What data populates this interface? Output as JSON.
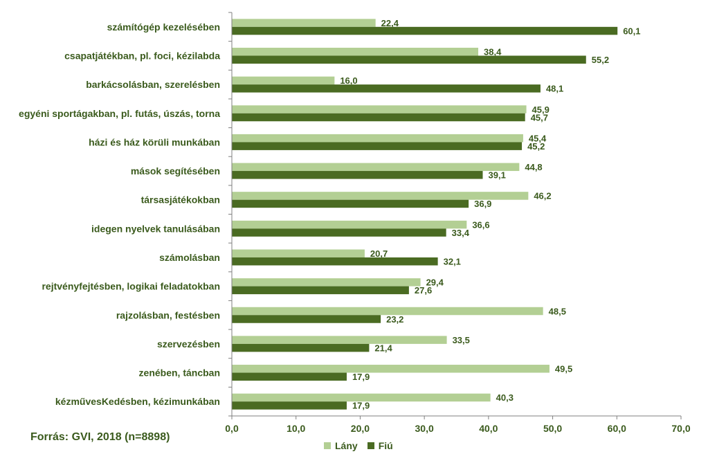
{
  "chart_data": {
    "type": "bar",
    "orientation": "horizontal",
    "categories": [
      "számítógép kezelésében",
      "csapatjátékban, pl. foci, kézilabda",
      "barkácsolásban, szerelésben",
      "egyéni sportágakban, pl. futás, úszás, torna",
      "házi és ház körüli munkában",
      "mások segítésében",
      "társasjátékokban",
      "idegen nyelvek tanulásában",
      "számolásban",
      "rejtvényfejtésben, logikai feladatokban",
      "rajzolásban, festésben",
      "szervezésben",
      "zenében, táncban",
      "kézművesKedésben, kézimunkában"
    ],
    "series": [
      {
        "name": "Lány",
        "color": "#b3cf94",
        "values": [
          22.4,
          38.4,
          16.0,
          45.9,
          45.4,
          44.8,
          46.2,
          36.6,
          20.7,
          29.4,
          48.5,
          33.5,
          49.5,
          40.3
        ],
        "labels": [
          "22,4",
          "38,4",
          "16,0",
          "45,9",
          "45,4",
          "44,8",
          "46,2",
          "36,6",
          "20,7",
          "29,4",
          "48,5",
          "33,5",
          "49,5",
          "40,3"
        ]
      },
      {
        "name": "Fiú",
        "color": "#4a6b22",
        "values": [
          60.1,
          55.2,
          48.1,
          45.7,
          45.2,
          39.1,
          36.9,
          33.4,
          32.1,
          27.6,
          23.2,
          21.4,
          17.9,
          17.9
        ],
        "labels": [
          "60,1",
          "55,2",
          "48,1",
          "45,7",
          "45,2",
          "39,1",
          "36,9",
          "33,4",
          "32,1",
          "27,6",
          "23,2",
          "21,4",
          "17,9",
          "17,9"
        ]
      }
    ],
    "xlim": [
      0,
      70
    ],
    "ticks": [
      0,
      10,
      20,
      30,
      40,
      50,
      60,
      70
    ],
    "tick_labels": [
      "0,0",
      "10,0",
      "20,0",
      "30,0",
      "40,0",
      "50,0",
      "60,0",
      "70,0"
    ],
    "grid": false,
    "legend": "bottom",
    "title": "",
    "xlabel": "",
    "ylabel": ""
  },
  "source_note": "Forrás: GVI, 2018 (n=8898)",
  "colors": {
    "text": "#3a5a1c",
    "axis": "#7f7f7f"
  }
}
